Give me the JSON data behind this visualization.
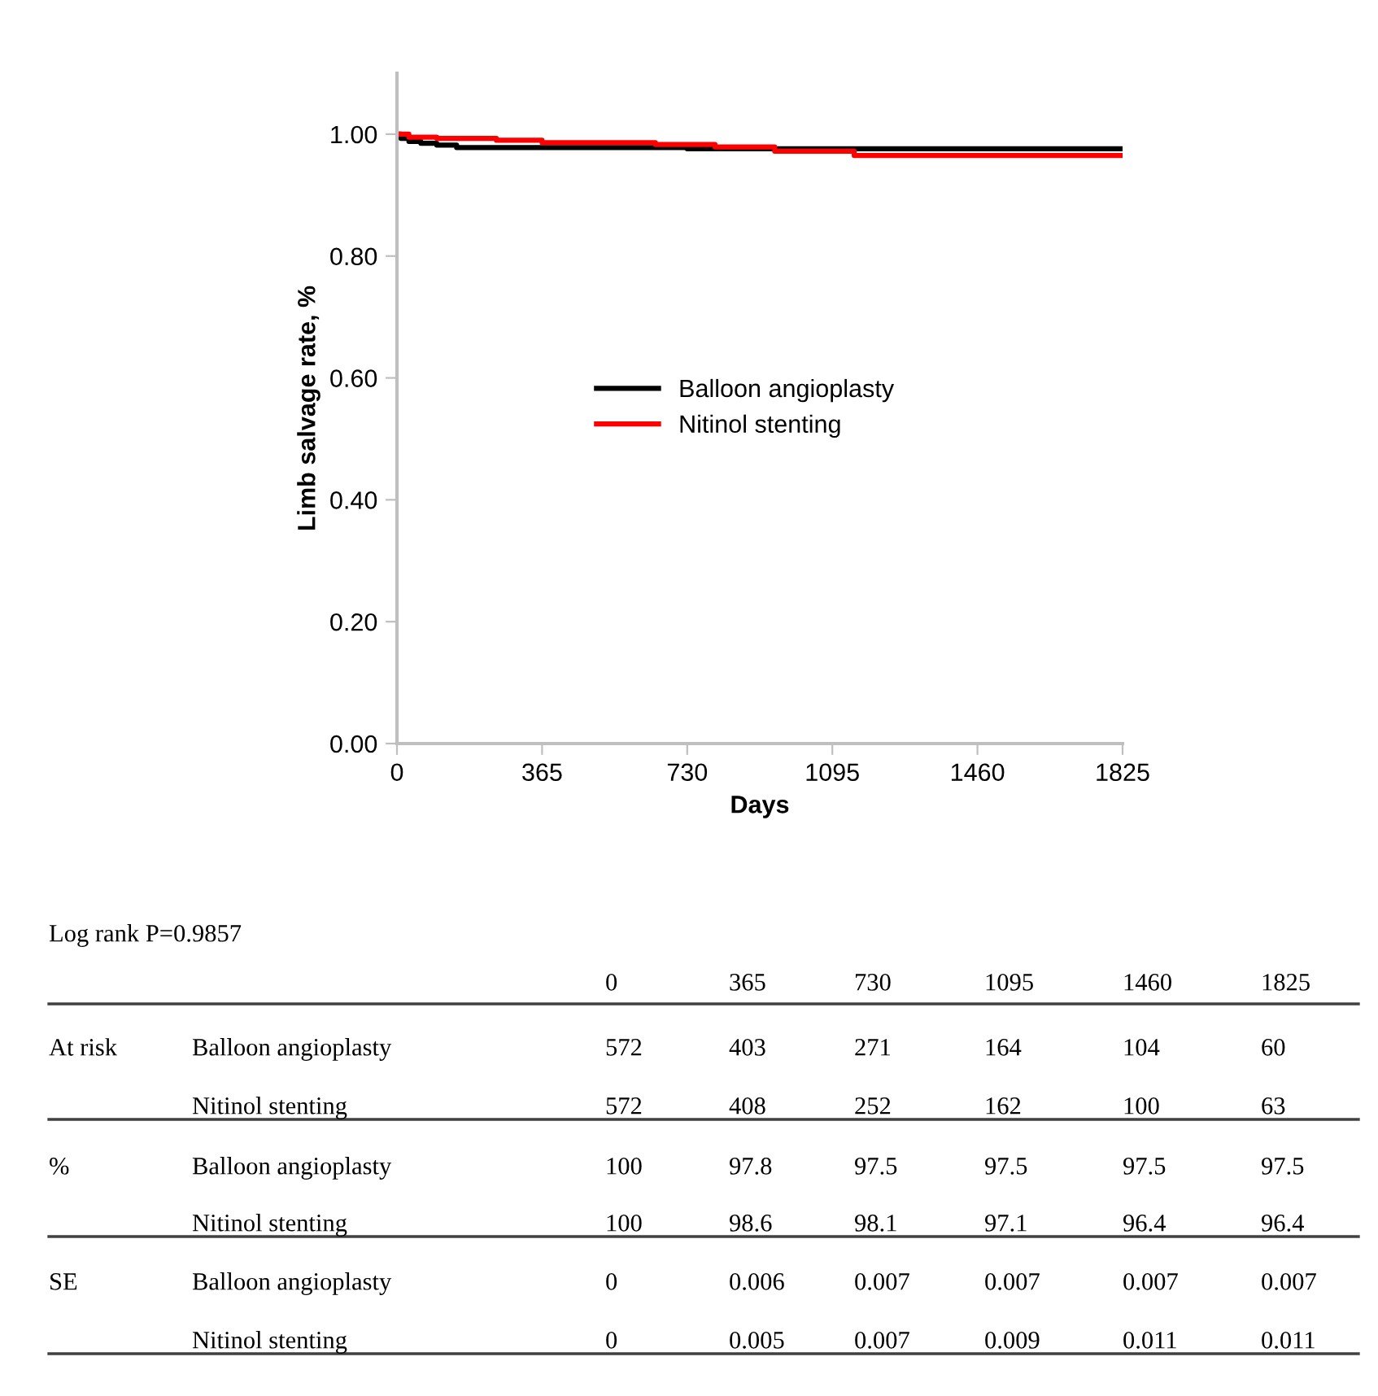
{
  "chart_data": {
    "type": "step",
    "xlabel": "Days",
    "ylabel": "Limb salvage rate, %",
    "series": [
      {
        "name": "Balloon angioplasty",
        "color": "#000000",
        "x": [
          0,
          10,
          30,
          60,
          100,
          150,
          250,
          365,
          730,
          1095,
          1460,
          1825
        ],
        "values": [
          1.0,
          0.993,
          0.988,
          0.985,
          0.982,
          0.978,
          0.978,
          0.978,
          0.976,
          0.976,
          0.976,
          0.976
        ]
      },
      {
        "name": "Nitinol stenting",
        "color": "#ff0000",
        "x": [
          0,
          30,
          100,
          250,
          365,
          650,
          800,
          950,
          1150,
          1460,
          1825
        ],
        "values": [
          1.0,
          0.995,
          0.993,
          0.99,
          0.986,
          0.983,
          0.979,
          0.972,
          0.965,
          0.965,
          0.965
        ]
      }
    ],
    "xlim": [
      0,
      1825
    ],
    "xticks": [
      0,
      365,
      730,
      1095,
      1460,
      1825
    ],
    "ylim": [
      0,
      1.1
    ],
    "yticks": [
      {
        "value": 0,
        "label": "0.00"
      },
      {
        "value": 0.2,
        "label": "0.20"
      },
      {
        "value": 0.4,
        "label": "0.40"
      },
      {
        "value": 0.6,
        "label": "0.60"
      },
      {
        "value": 0.8,
        "label": "0.80"
      },
      {
        "value": 1.0,
        "label": "1.00"
      }
    ],
    "grid": false,
    "legend": "center",
    "annotations": [
      "Log rank P=0.9857",
      "0",
      "365",
      "730",
      "1095",
      "1460",
      "1825",
      "At risk",
      "Balloon angioplasty",
      "572",
      "403",
      "271",
      "164",
      "104",
      "60",
      "Nitinol stenting",
      "572",
      "408",
      "252",
      "162",
      "100",
      "63",
      "%",
      "Balloon angioplasty",
      "100",
      "97.8",
      "97.5",
      "97.5",
      "97.5",
      "97.5",
      "Nitinol stenting",
      "100",
      "98.6",
      "98.1",
      "97.1",
      "96.4",
      "96.4",
      "SE",
      "Balloon angioplasty",
      "0",
      "0.006",
      "0.007",
      "0.007",
      "0.007",
      "0.007",
      "Nitinol stenting",
      "0",
      "0.005",
      "0.007",
      "0.009",
      "0.011",
      "0.011"
    ]
  }
}
